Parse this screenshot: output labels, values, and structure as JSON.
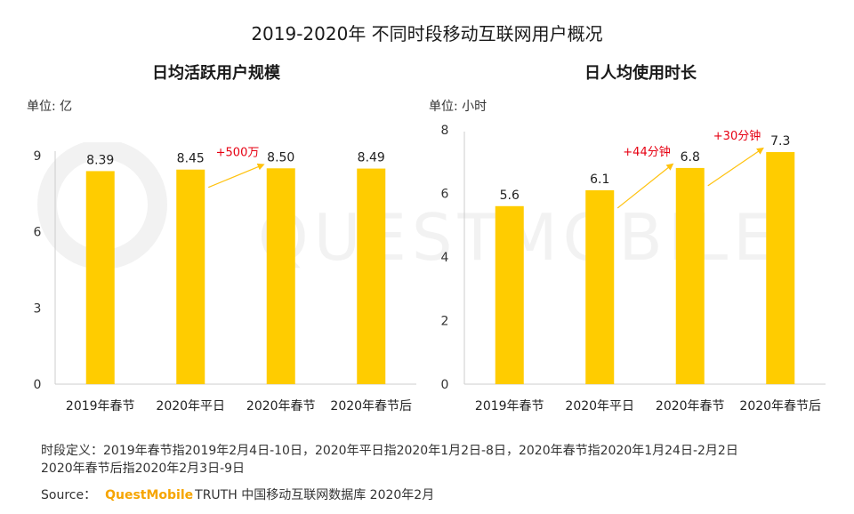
{
  "main_title": "2019-2020年 不同时段移动互联网用户概况",
  "watermark_text": "QUESTMOBILE",
  "colors": {
    "bar": "#ffcc00",
    "arrow": "#ffc20e",
    "delta": "#e60012",
    "axis": "#cccccc",
    "watermark": "#f2f2f2"
  },
  "chart_data": [
    {
      "type": "bar",
      "title": "日均活跃用户规模",
      "unit_label": "单位: 亿",
      "categories": [
        "2019年春节",
        "2020年平日",
        "2020年春节",
        "2020年春节后"
      ],
      "values": [
        8.39,
        8.45,
        8.5,
        8.49
      ],
      "value_labels": [
        "8.39",
        "8.45",
        "8.50",
        "8.49"
      ],
      "ylim": [
        0,
        9
      ],
      "yticks": [
        0,
        3,
        6,
        9
      ],
      "annotations": [
        {
          "from": 1,
          "to": 2,
          "text": "+500万"
        }
      ]
    },
    {
      "type": "bar",
      "title": "日人均使用时长",
      "unit_label": "单位: 小时",
      "categories": [
        "2019年春节",
        "2020年平日",
        "2020年春节",
        "2020年春节后"
      ],
      "values": [
        5.6,
        6.1,
        6.8,
        7.3
      ],
      "value_labels": [
        "5.6",
        "6.1",
        "6.8",
        "7.3"
      ],
      "ylim": [
        0,
        8
      ],
      "yticks": [
        0,
        2,
        4,
        6,
        8
      ],
      "annotations": [
        {
          "from": 1,
          "to": 2,
          "text": "+44分钟"
        },
        {
          "from": 2,
          "to": 3,
          "text": "+30分钟"
        }
      ]
    }
  ],
  "footnote": {
    "line1": "时段定义：2019年春节指2019年2月4日-10日，2020年平日指2020年1月2日-8日，2020年春节指2020年1月24日-2月2日",
    "line2": "2020年春节后指2020年2月3日-9日"
  },
  "source": {
    "label": "Source：",
    "brand": "QuestMobile",
    "rest": "TRUTH 中国移动互联网数据库 2020年2月"
  }
}
